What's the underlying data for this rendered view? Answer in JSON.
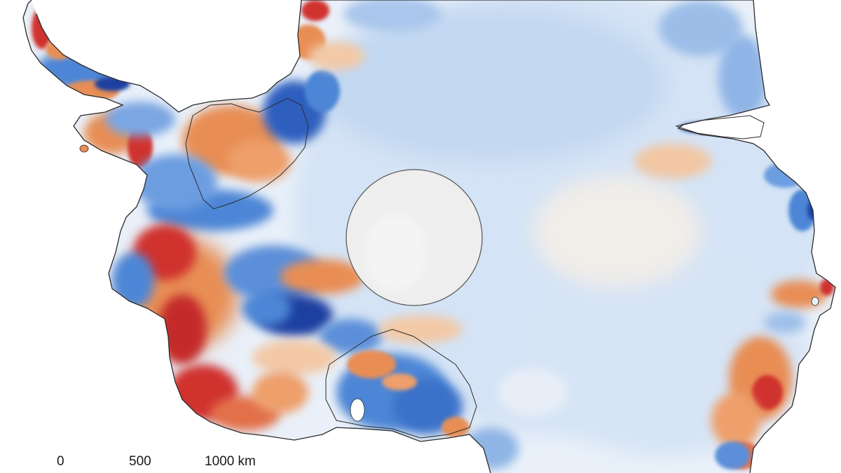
{
  "map": {
    "scale_bar": {
      "tick_0": "0",
      "tick_500": "500",
      "tick_1000": "1000 km"
    },
    "colors": {
      "background": "#ffffff",
      "coastline": "#2b2b2b",
      "neutral": "#eef3f9",
      "light_blue": "#cfe0f3",
      "blue": "#4d86d6",
      "dark_blue": "#1f3fa0",
      "orange": "#e8935a",
      "light_orange": "#f3c9a6",
      "red": "#d0312d",
      "pole_hole": "#eeeeee"
    }
  }
}
